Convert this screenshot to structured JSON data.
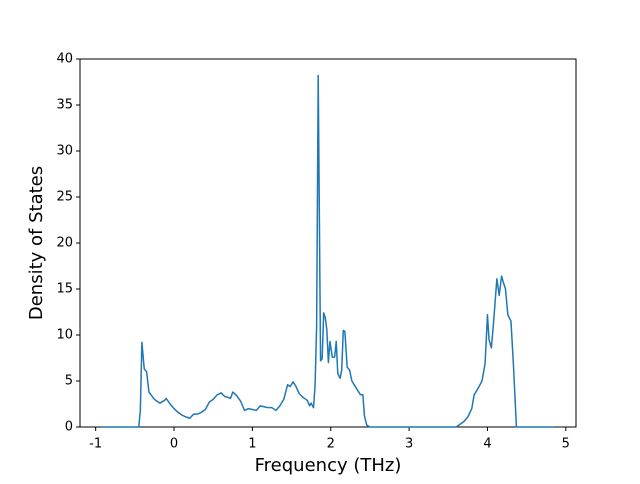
{
  "chart_data": {
    "type": "line",
    "xlabel": "Frequency (THz)",
    "ylabel": "Density of States",
    "x": [
      -0.92,
      -0.45,
      -0.43,
      -0.41,
      -0.38,
      -0.35,
      -0.32,
      -0.25,
      -0.18,
      -0.12,
      -0.1,
      -0.05,
      0.0,
      0.05,
      0.1,
      0.15,
      0.2,
      0.25,
      0.3,
      0.35,
      0.4,
      0.45,
      0.5,
      0.55,
      0.6,
      0.65,
      0.7,
      0.72,
      0.75,
      0.8,
      0.85,
      0.9,
      0.95,
      1.0,
      1.05,
      1.1,
      1.15,
      1.2,
      1.25,
      1.3,
      1.35,
      1.4,
      1.45,
      1.48,
      1.52,
      1.55,
      1.6,
      1.65,
      1.7,
      1.73,
      1.75,
      1.78,
      1.8,
      1.82,
      1.84,
      1.87,
      1.89,
      1.91,
      1.93,
      1.95,
      1.97,
      1.99,
      2.02,
      2.05,
      2.07,
      2.09,
      2.12,
      2.14,
      2.16,
      2.18,
      2.21,
      2.24,
      2.27,
      2.32,
      2.38,
      2.41,
      2.43,
      2.46,
      2.5,
      3.6,
      3.7,
      3.75,
      3.8,
      3.83,
      3.88,
      3.93,
      3.97,
      4.0,
      4.02,
      4.05,
      4.08,
      4.12,
      4.15,
      4.18,
      4.2,
      4.23,
      4.26,
      4.3,
      4.33,
      4.37,
      4.85
    ],
    "series": [
      {
        "name": "DOS",
        "color": "#1f77b4",
        "values": [
          0,
          0,
          1.8,
          9.2,
          6.3,
          6.0,
          3.8,
          3.0,
          2.6,
          2.9,
          3.1,
          2.5,
          2.0,
          1.6,
          1.3,
          1.1,
          0.95,
          1.4,
          1.4,
          1.6,
          1.9,
          2.7,
          3.0,
          3.5,
          3.7,
          3.3,
          3.2,
          3.1,
          3.8,
          3.4,
          2.8,
          1.8,
          2.0,
          1.9,
          1.8,
          2.3,
          2.2,
          2.1,
          2.1,
          1.8,
          2.3,
          3.0,
          4.6,
          4.4,
          4.9,
          4.5,
          3.6,
          3.2,
          2.9,
          2.3,
          2.6,
          2.1,
          4.5,
          11,
          38.2,
          7.2,
          7.4,
          12.4,
          11.9,
          10.6,
          7.0,
          9.3,
          7.6,
          7.6,
          9.3,
          5.8,
          5.3,
          6.2,
          10.5,
          10.4,
          6.5,
          6.2,
          5.0,
          4.3,
          3.5,
          3.5,
          1.2,
          0.2,
          0,
          0,
          0.6,
          1.1,
          2.0,
          3.5,
          4.2,
          5.0,
          6.9,
          12.2,
          9.5,
          8.6,
          11.6,
          16.1,
          14.3,
          16.4,
          15.8,
          15.0,
          12.2,
          11.5,
          7.0,
          0,
          0
        ]
      }
    ],
    "xlim": [
      -1.2,
      5.13
    ],
    "ylim": [
      0,
      40
    ],
    "xticks": [
      -1,
      0,
      1,
      2,
      3,
      4,
      5
    ],
    "yticks": [
      0,
      5,
      10,
      15,
      20,
      25,
      30,
      35,
      40
    ]
  }
}
